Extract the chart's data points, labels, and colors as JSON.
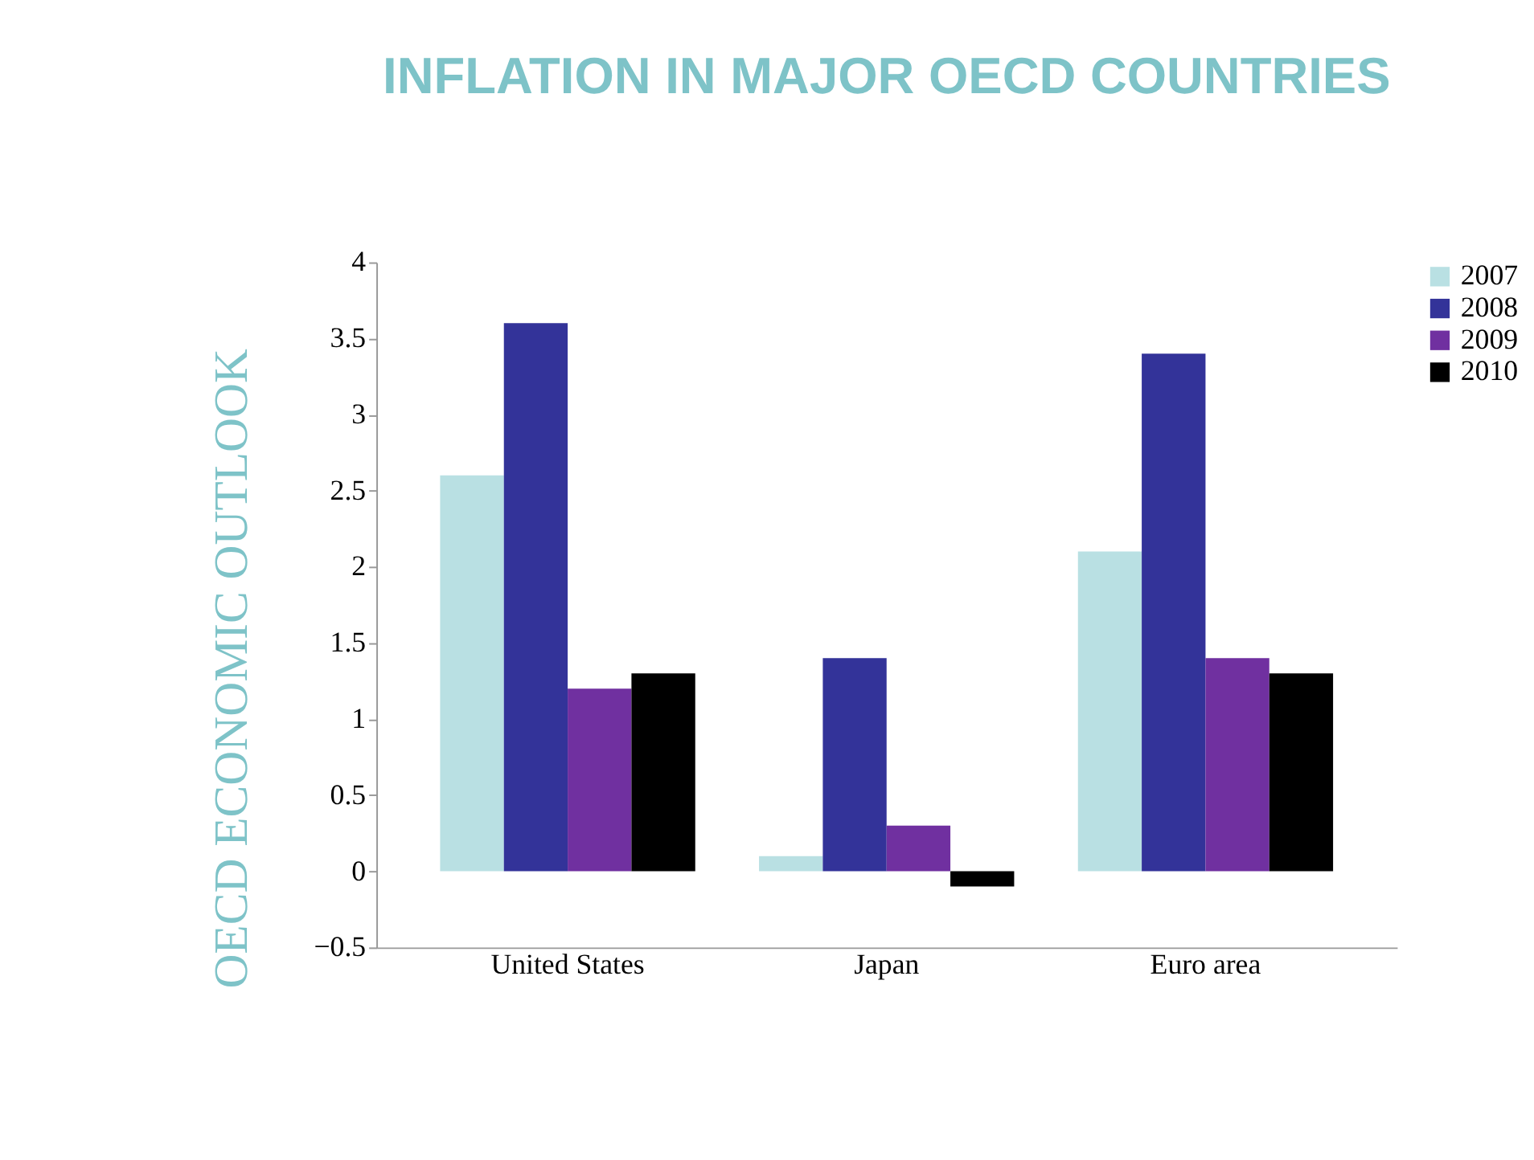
{
  "chart_data": {
    "type": "bar",
    "title": "INFLATION IN MAJOR OECD COUNTRIES",
    "annotations": [
      "OECD ECONOMIC OUTLOOK"
    ],
    "categories": [
      "United States",
      "Japan",
      "Euro area"
    ],
    "series": [
      {
        "name": "2007",
        "color": "#b9e0e3",
        "values": [
          2.6,
          0.1,
          2.1
        ]
      },
      {
        "name": "2008",
        "color": "#333399",
        "values": [
          3.6,
          1.4,
          3.4
        ]
      },
      {
        "name": "2009",
        "color": "#7030a0",
        "values": [
          1.2,
          0.3,
          1.4
        ]
      },
      {
        "name": "2010",
        "color": "#000000",
        "values": [
          1.3,
          -0.1,
          1.3
        ]
      }
    ],
    "ylim": [
      -0.5,
      4
    ],
    "yticks": [
      -0.5,
      0,
      0.5,
      1,
      1.5,
      2,
      2.5,
      3,
      3.5,
      4
    ],
    "grid": false,
    "legend": "right"
  }
}
